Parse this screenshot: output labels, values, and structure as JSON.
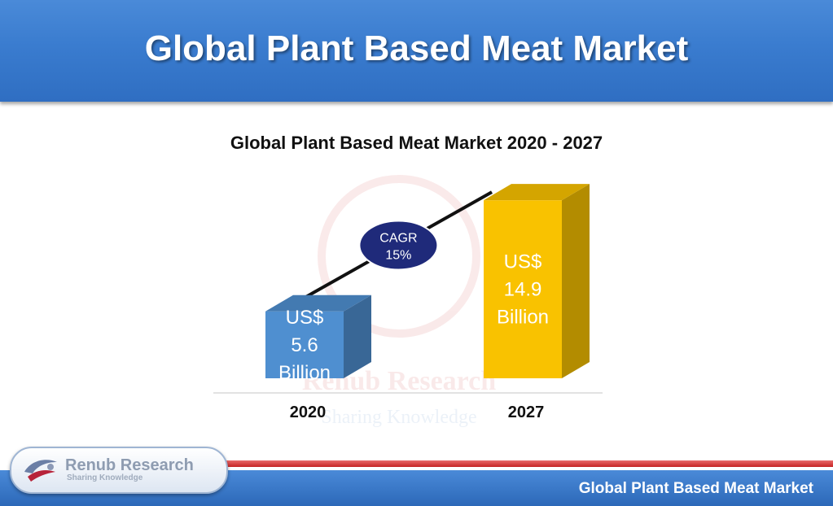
{
  "header": {
    "title": "Global Plant Based Meat Market"
  },
  "chart_data": {
    "type": "bar",
    "title": "Global Plant Based Meat Market 2020 - 2027",
    "categories": [
      "2020",
      "2027"
    ],
    "values": [
      5.6,
      14.9
    ],
    "bar_labels": [
      [
        "US$",
        "5.6",
        "Billion"
      ],
      [
        "US$",
        "14.9",
        "Billion"
      ]
    ],
    "annotation": [
      "CAGR",
      "15%"
    ],
    "unit": "US$ Billion",
    "colors": [
      "#4f8fd0",
      "#f9c200"
    ]
  },
  "watermark": {
    "name": "Renub Research",
    "tagline": "Sharing Knowledge"
  },
  "logo": {
    "name": "Renub Research",
    "tagline": "Sharing Knowledge"
  },
  "footer": {
    "text": "Global Plant Based Meat Market"
  }
}
